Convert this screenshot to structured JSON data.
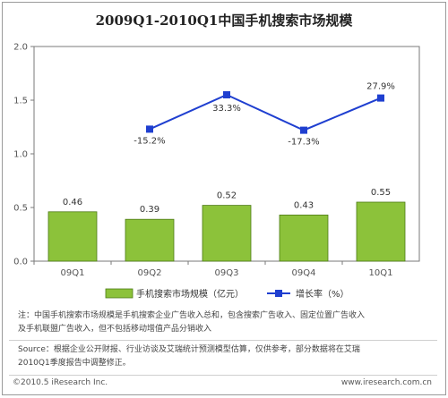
{
  "chart_data": {
    "type": "bar",
    "title": "2009Q1-2010Q1中国手机搜索市场规模",
    "categories": [
      "09Q1",
      "09Q2",
      "09Q3",
      "09Q4",
      "10Q1"
    ],
    "ylim": [
      0,
      2.0
    ],
    "yticks": [
      "0.0",
      "0.5",
      "1.0",
      "1.5",
      "2.0"
    ],
    "grid": false,
    "legend_position": "bottom",
    "series": [
      {
        "name": "手机搜索市场规模（亿元）",
        "kind": "bar",
        "color": "#8cc23a",
        "values": [
          0.46,
          0.39,
          0.52,
          0.43,
          0.55
        ],
        "labels": [
          "0.46",
          "0.39",
          "0.52",
          "0.43",
          "0.55"
        ]
      },
      {
        "name": "增长率（%）",
        "kind": "line",
        "color": "#1f3fd0",
        "values": [
          null,
          1.23,
          1.55,
          1.22,
          1.52
        ],
        "labels": [
          "",
          "-15.2%",
          "33.3%",
          "-17.3%",
          "27.9%"
        ]
      }
    ]
  },
  "notes": {
    "line1": "注：中国手机搜索市场规模是手机搜索企业广告收入总和，包含搜索广告收入、固定位置广告收入",
    "line2": "及手机联盟广告收入，但不包括移动增值产品分销收入",
    "line3": "Source：根据企业公开财报、行业访谈及艾瑞统计预测模型估算，仅供参考，部分数据将在艾瑞",
    "line4": "2010Q1季度报告中调整修正。"
  },
  "footer": {
    "left": "©2010.5 iResearch Inc.",
    "right": "www.iresearch.com.cn"
  }
}
